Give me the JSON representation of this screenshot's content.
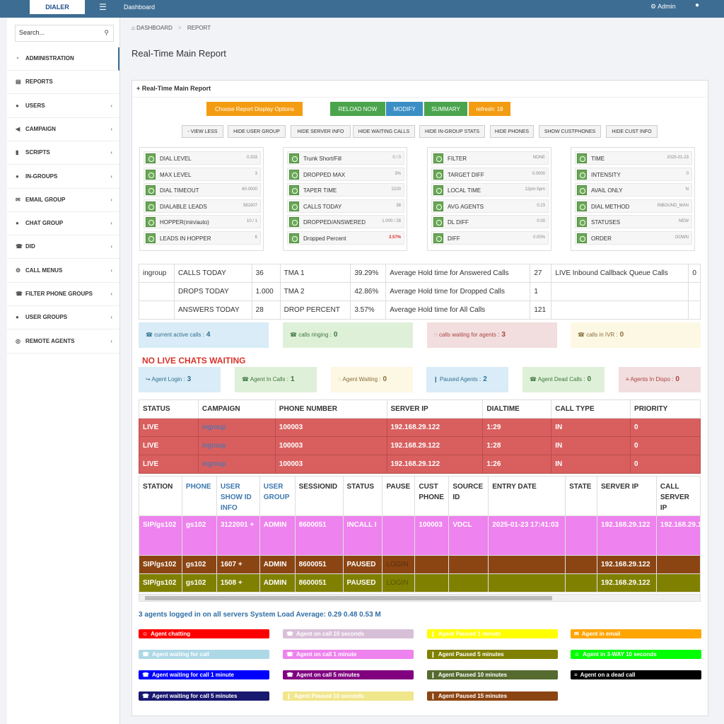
{
  "topbar": {
    "logo": "DIALER",
    "menu_icon": "menu-icon",
    "dashboard": "Dashboard",
    "admin": "Admin"
  },
  "sidebar": {
    "search_placeholder": "Search...",
    "items": [
      {
        "label": "ADMINISTRATION",
        "icon": "dashboard-icon"
      },
      {
        "label": "REPORTS",
        "icon": "chart-icon"
      },
      {
        "label": "USERS",
        "icon": "user-icon"
      },
      {
        "label": "CAMPAIGN",
        "icon": "bullhorn-icon"
      },
      {
        "label": "SCRIPTS",
        "icon": "file-icon"
      },
      {
        "label": "IN-GROUPS",
        "icon": "user-icon"
      },
      {
        "label": "EMAIL GROUP",
        "icon": "envelope-icon"
      },
      {
        "label": "CHAT GROUP",
        "icon": "comment-icon"
      },
      {
        "label": "DID",
        "icon": "phone-icon"
      },
      {
        "label": "CALL MENUS",
        "icon": "gear-icon"
      },
      {
        "label": "FILTER PHONE GROUPS",
        "icon": "phone-icon"
      },
      {
        "label": "USER GROUPS",
        "icon": "user-icon"
      },
      {
        "label": "REMOTE AGENTS",
        "icon": "circle-icon"
      }
    ]
  },
  "breadcrumb": {
    "home": "DASHBOARD",
    "current": "REPORT"
  },
  "page_title": "Real-Time Main Report",
  "panel_title": "Real-Time Main Report",
  "buttons": {
    "display_options": "Choose Report Display Options",
    "reload": "RELOAD NOW",
    "modify": "MODIFY",
    "summary": "SUMMARY",
    "refresh": "refresh: 18"
  },
  "small_buttons": [
    "- VIEW LESS",
    "HIDE USER GROUP",
    "HIDE SERVER INFO",
    "HIDE WAITING CALLS",
    "HIDE IN-GROUP STATS",
    "HIDE PHONES",
    "SHOW CUSTPHONES",
    "HIDE CUST INFO"
  ],
  "stat_boxes": [
    [
      {
        "label": "DIAL LEVEL",
        "value": "0.333"
      },
      {
        "label": "MAX LEVEL",
        "value": "3"
      },
      {
        "label": "DIAL TIMEOUT",
        "value": "60.0000"
      },
      {
        "label": "DIALABLE LEADS",
        "value": "581907"
      },
      {
        "label": "HOPPER(min/auto)",
        "value": "10 / 1"
      },
      {
        "label": "LEADS IN HOPPER",
        "value": "6"
      }
    ],
    [
      {
        "label": "Trunk Short/Fill",
        "value": "0 / 0"
      },
      {
        "label": "DROPPED MAX",
        "value": "3%"
      },
      {
        "label": "TAPER TIME",
        "value": "2100"
      },
      {
        "label": "CALLS TODAY",
        "value": "38"
      },
      {
        "label": "DROPPED/ANSWERED",
        "value": "1.000 / 28"
      },
      {
        "label": "Dropped Percent",
        "value": "3.57%",
        "alert": true
      }
    ],
    [
      {
        "label": "FILTER",
        "value": "NONE"
      },
      {
        "label": "TARGET DIFF",
        "value": "0.0000"
      },
      {
        "label": "LOCAL TIME",
        "value": "12pm-5pm"
      },
      {
        "label": "AVG AGENTS",
        "value": "0.23"
      },
      {
        "label": "DL DIFF",
        "value": "0.00"
      },
      {
        "label": "DIFF",
        "value": "0.00%"
      }
    ],
    [
      {
        "label": "TIME",
        "value": "2025-01-23"
      },
      {
        "label": "INTENSITY",
        "value": "0"
      },
      {
        "label": "AVAIL ONLY",
        "value": "N"
      },
      {
        "label": "DIAL METHOD",
        "value": "INBOUND_MAN"
      },
      {
        "label": "STATUSES",
        "value": "NEW"
      },
      {
        "label": "ORDER",
        "value": "DOWN"
      }
    ]
  ],
  "summary_table": [
    [
      "ingroup",
      "CALLS TODAY",
      "36",
      "TMA 1",
      "39.29%",
      "Average Hold time for Answered Calls",
      "27",
      "LIVE Inbound Callback Queue Calls",
      "0"
    ],
    [
      "",
      "DROPS TODAY",
      "1.000",
      "TMA 2",
      "42.86%",
      "Average Hold time for Dropped Calls",
      "1",
      "",
      ""
    ],
    [
      "",
      "ANSWERS TODAY",
      "28",
      "DROP PERCENT",
      "3.57%",
      "Average Hold time for All Calls",
      "121",
      "",
      ""
    ]
  ],
  "call_tiles": [
    {
      "label": "current active calls :",
      "value": "4",
      "icon": "phone-square-icon"
    },
    {
      "label": "calls ringing :",
      "value": "0",
      "icon": "phone-icon"
    },
    {
      "label": "calls waiting for agents :",
      "value": "3",
      "icon": "spinner-icon"
    },
    {
      "label": "calls in IVR :",
      "value": "0",
      "icon": "phone-square-icon"
    }
  ],
  "no_live_chats": "NO LIVE CHATS WAITING",
  "agent_tiles": [
    {
      "label": "Agent Login :",
      "value": "3",
      "icon": "login-icon"
    },
    {
      "label": "Agent In Calls :",
      "value": "1",
      "icon": "phone-icon"
    },
    {
      "label": "Agent Waiting :",
      "value": "0",
      "icon": "spinner-icon"
    },
    {
      "label": "Paused Agents :",
      "value": "2",
      "icon": "pause-icon"
    },
    {
      "label": "Agent Dead Calls :",
      "value": "0",
      "icon": "phone-square-icon"
    },
    {
      "label": "Agents In Dispo :",
      "value": "0",
      "icon": "list-icon"
    }
  ],
  "calls_table": {
    "headers": [
      "STATUS",
      "CAMPAIGN",
      "PHONE NUMBER",
      "SERVER IP",
      "DIALTIME",
      "CALL TYPE",
      "PRIORITY"
    ],
    "rows": [
      [
        "LIVE",
        "ingroup",
        "100003",
        "192.168.29.122",
        "1:29",
        "IN",
        "0"
      ],
      [
        "LIVE",
        "ingroup",
        "100003",
        "192.168.29.122",
        "1:28",
        "IN",
        "0"
      ],
      [
        "LIVE",
        "ingroup",
        "100003",
        "192.168.29.122",
        "1:26",
        "IN",
        "0"
      ]
    ]
  },
  "agents_table": {
    "headers": [
      "STATION",
      "PHONE",
      "USER SHOW ID INFO",
      "USER GROUP",
      "SESSIONID",
      "STATUS",
      "PAUSE",
      "CUST PHONE",
      "SOURCE ID",
      "ENTRY DATE",
      "STATE",
      "SERVER IP",
      "CALL SERVER IP"
    ],
    "rows": [
      {
        "color": "#ee82ee",
        "cells": [
          "SIP/gs102",
          "gs102",
          "3122001 +",
          "ADMIN",
          "8600051",
          "INCALL I",
          "",
          "100003",
          "VDCL",
          "2025-01-23 17:41:03",
          "",
          "192.168.29.122",
          "192.168.29.1"
        ]
      },
      {
        "color": "#8b4513",
        "cells": [
          "SIP/gs102",
          "gs102",
          "1607 +",
          "ADMIN",
          "8600051",
          "PAUSED",
          "LOGIN",
          "",
          "",
          "",
          "",
          "192.168.29.122",
          ""
        ]
      },
      {
        "color": "#808000",
        "cells": [
          "SIP/gs102",
          "gs102",
          "1508 +",
          "ADMIN",
          "8600051",
          "PAUSED",
          "LOGIN",
          "",
          "",
          "",
          "",
          "192.168.29.122",
          ""
        ]
      }
    ]
  },
  "load_line": "3  agents logged in on all servers System Load Average: 0.29 0.48 0.53   M",
  "legend": [
    {
      "label": "Agent chatting",
      "color": "#ff0000",
      "icon": "users-icon"
    },
    {
      "label": "Agent on call 10 seconds",
      "color": "#d8bfd8",
      "icon": "phone-icon"
    },
    {
      "label": "Agent Paused 1 minute",
      "color": "#ffff00",
      "icon": "pause-icon"
    },
    {
      "label": "Agent in email",
      "color": "#ffa500",
      "icon": "envelope-icon"
    },
    {
      "label": "Agent waiting for call",
      "color": "#add8e6",
      "icon": "phone-icon"
    },
    {
      "label": "Agent on call 1 minute",
      "color": "#ee82ee",
      "icon": "phone-icon"
    },
    {
      "label": "Agent Paused 5 minutes",
      "color": "#808000",
      "icon": "pause-icon"
    },
    {
      "label": "Agent in 3-WAY 10 seconds",
      "color": "#00ff00",
      "icon": "users-icon"
    },
    {
      "label": "Agent waiting for call 1 minute",
      "color": "#0000ff",
      "icon": "phone-square-icon"
    },
    {
      "label": "Agent on call 5 minutes",
      "color": "#800080",
      "icon": "phone-icon"
    },
    {
      "label": "Agent Paused 10 minutes",
      "color": "#556b2f",
      "icon": "pause-icon"
    },
    {
      "label": "Agent on a dead call",
      "color": "#000000",
      "icon": "list-icon"
    },
    {
      "label": "Agent waiting for call 5 minutes",
      "color": "#191970",
      "icon": "phone-icon"
    },
    {
      "label": "Agent Paused 10 seconds",
      "color": "#f0e68c",
      "icon": "pause-icon"
    },
    {
      "label": "Agent Paused 15 minutes",
      "color": "#8b4513",
      "icon": "pause-icon"
    }
  ]
}
